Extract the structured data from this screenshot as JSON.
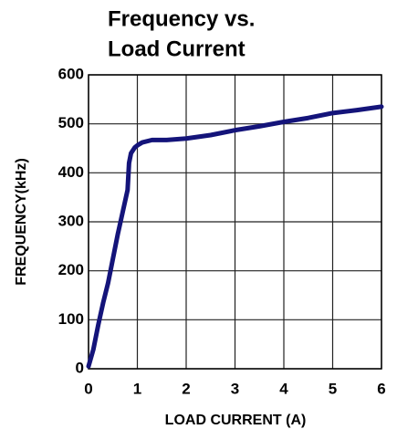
{
  "chart_data": {
    "type": "line",
    "title": [
      "Frequency vs.",
      "Load Current"
    ],
    "x_label": "LOAD CURRENT (A)",
    "y_label": "FREQUENCY(kHz)",
    "x": [
      0,
      0.1,
      0.2,
      0.3,
      0.4,
      0.5,
      0.6,
      0.7,
      0.8,
      0.83,
      0.87,
      0.95,
      1.0,
      1.1,
      1.3,
      1.6,
      2,
      2.5,
      3,
      3.5,
      4,
      4.5,
      5,
      5.5,
      6
    ],
    "series": [
      {
        "name": "Frequency",
        "color": "#14147a",
        "values": [
          5,
          40,
          90,
          135,
          175,
          225,
          275,
          320,
          365,
          420,
          440,
          452,
          456,
          462,
          467,
          467,
          470,
          477,
          487,
          495,
          504,
          512,
          522,
          528,
          535
        ]
      }
    ],
    "xlim": [
      0,
      6
    ],
    "xticks": [
      0,
      1,
      2,
      3,
      4,
      5,
      6
    ],
    "ylim": [
      0,
      600
    ],
    "yticks": [
      0,
      100,
      200,
      300,
      400,
      500,
      600
    ],
    "grid": true
  }
}
